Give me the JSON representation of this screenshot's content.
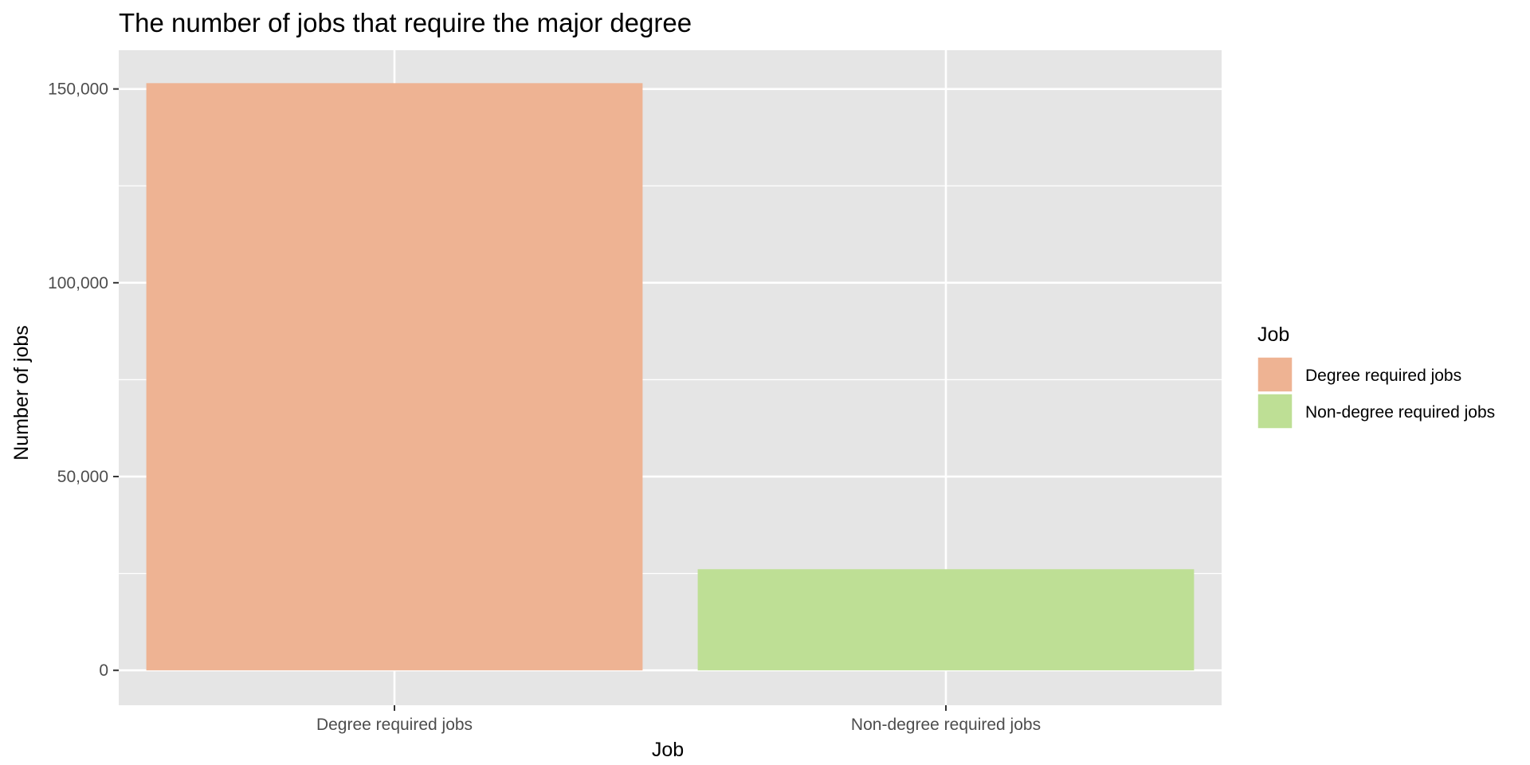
{
  "chart_data": {
    "type": "bar",
    "title": "The number of jobs that require the major degree",
    "xlabel": "Job",
    "ylabel": "Number of jobs",
    "categories": [
      "Degree required jobs",
      "Non-degree required jobs"
    ],
    "values": [
      151500,
      26100
    ],
    "colors": [
      "#EEB393",
      "#BEDF95"
    ],
    "ylim": [
      -9000,
      160000
    ],
    "yticks": [
      0,
      50000,
      100000,
      150000
    ],
    "ytick_labels": [
      "0",
      "50,000",
      "100,000",
      "150,000"
    ],
    "grid": true,
    "panel_background": "#E5E5E5",
    "gridline_color": "#FFFFFF",
    "legend": {
      "title": "Job",
      "position": "right",
      "entries": [
        "Degree required jobs",
        "Non-degree required jobs"
      ]
    }
  }
}
